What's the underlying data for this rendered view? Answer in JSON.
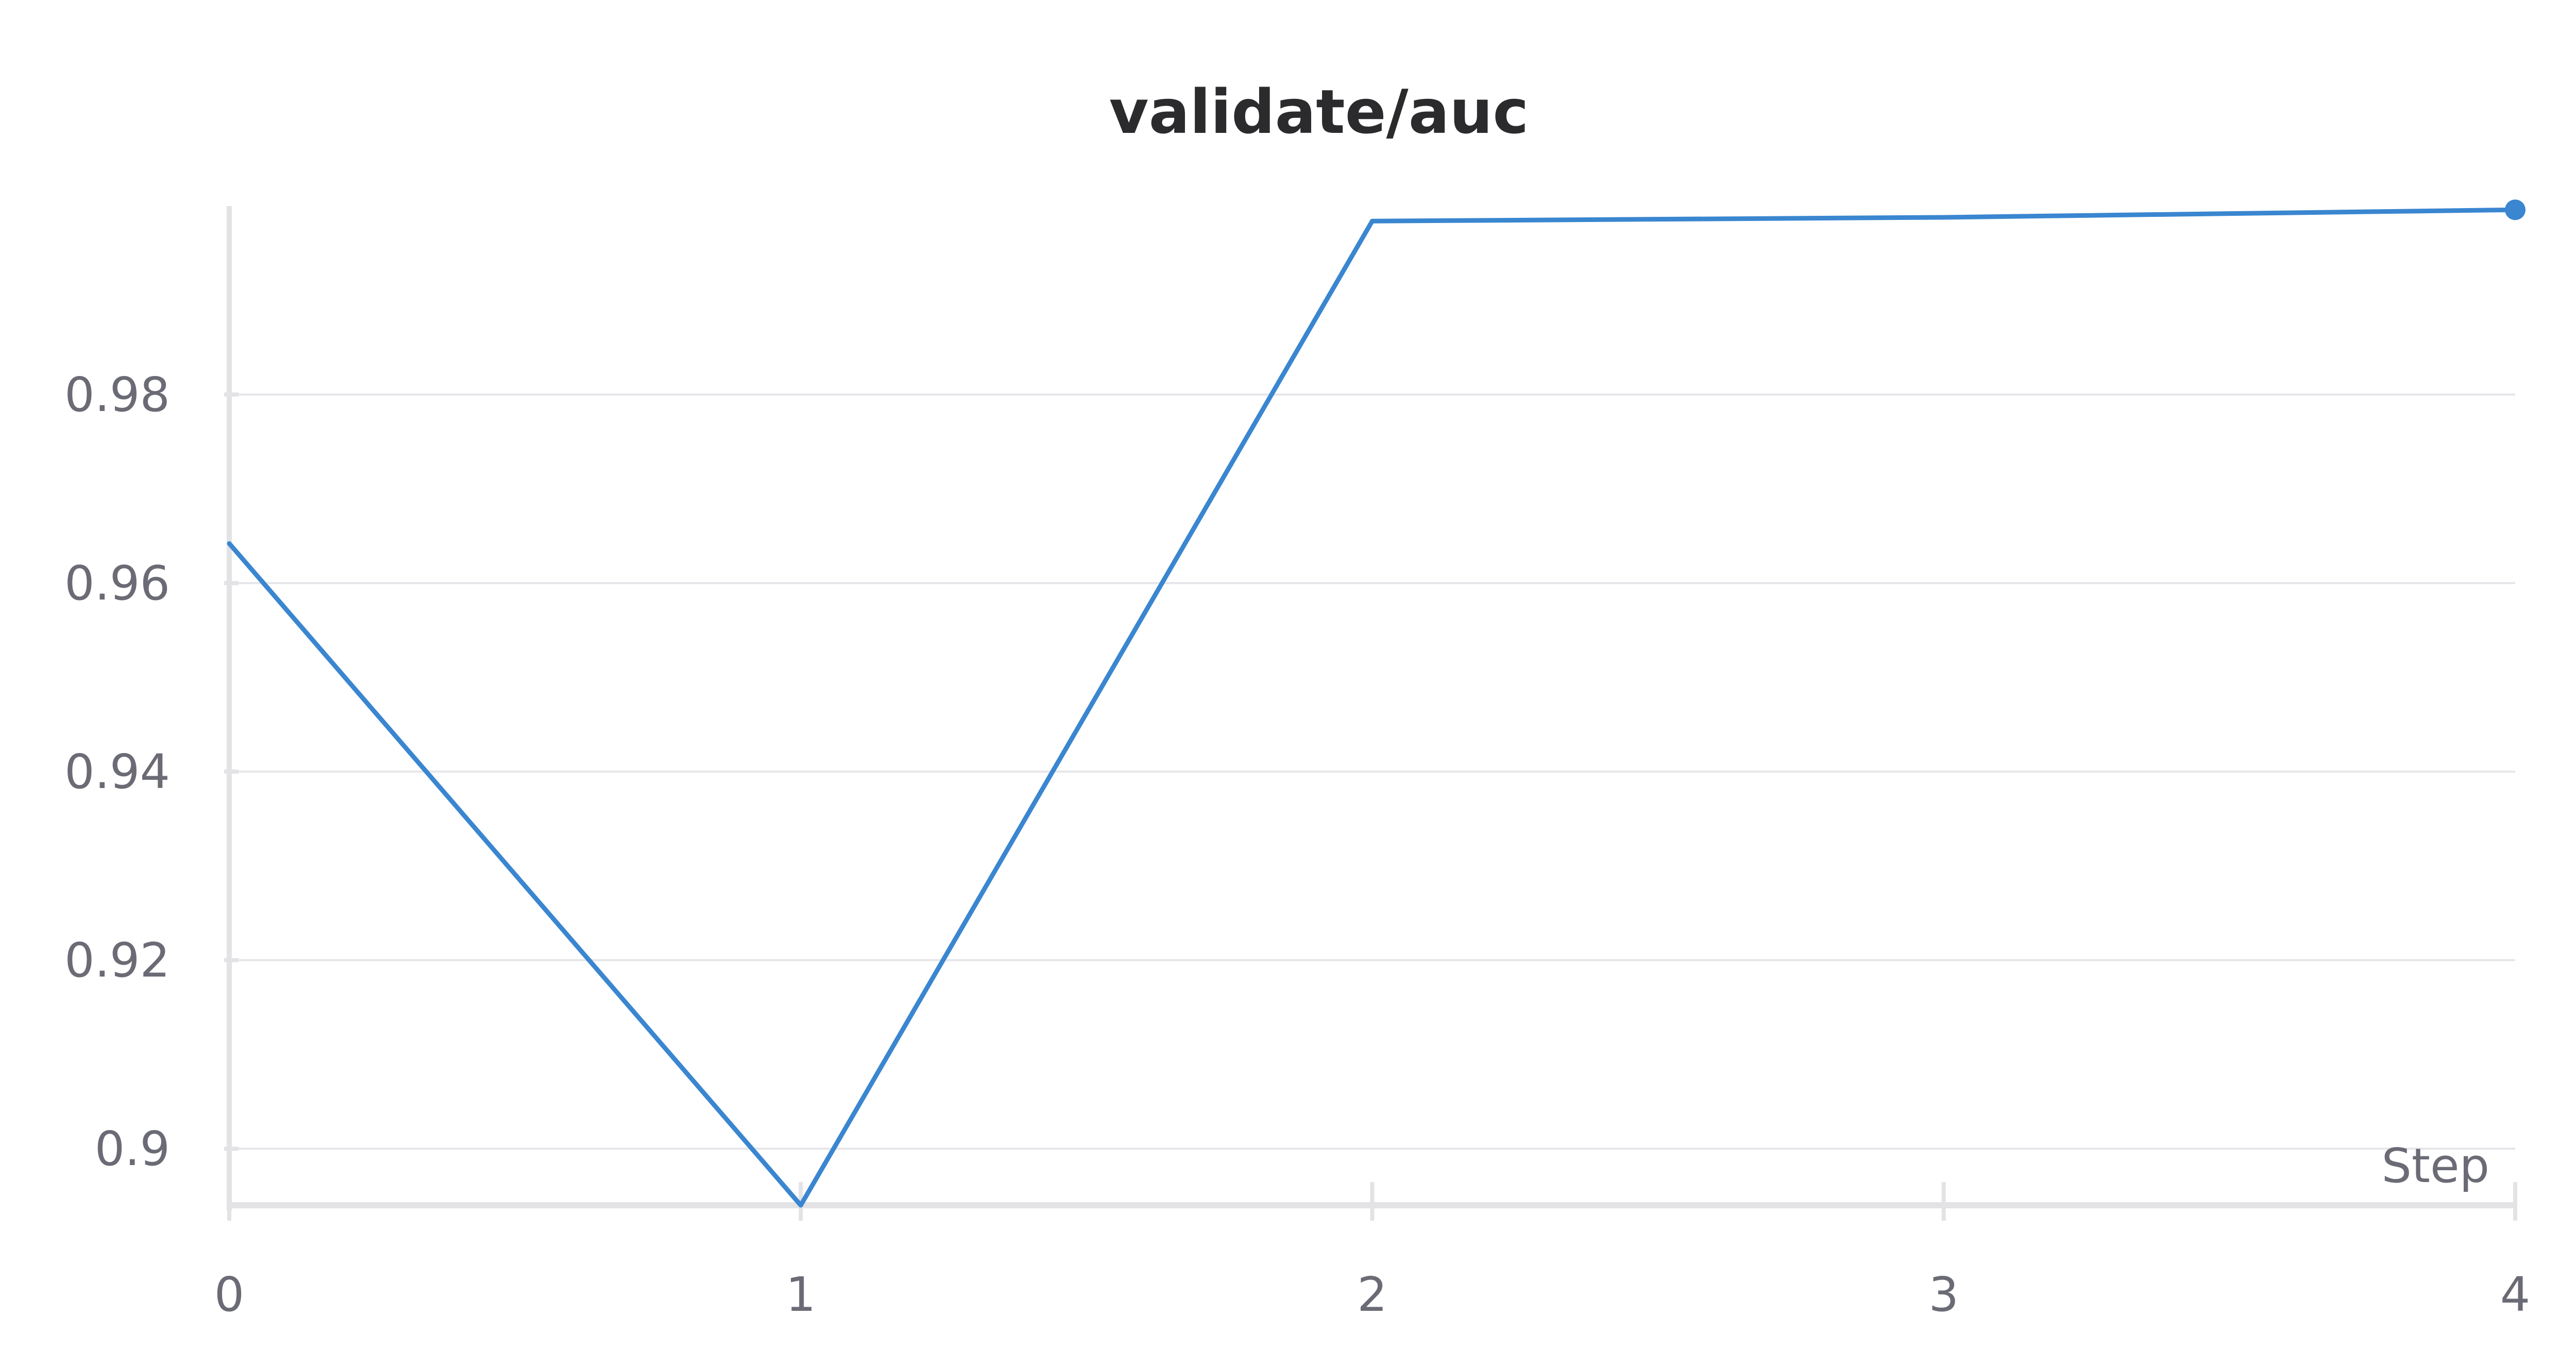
{
  "chart_data": {
    "type": "line",
    "title": "validate/auc",
    "xlabel": "Step",
    "ylabel": "",
    "x": [
      0,
      1,
      2,
      3,
      4
    ],
    "series": [
      {
        "values": [
          0.9642,
          0.894,
          0.9984,
          0.9988,
          0.9996
        ],
        "color": "#3a86d0"
      }
    ],
    "xlim": [
      0,
      4
    ],
    "ylim": [
      0.894,
      1.0
    ],
    "x_ticks": [
      0,
      1,
      2,
      3,
      4
    ],
    "x_tick_labels": [
      "0",
      "1",
      "2",
      "3",
      "4"
    ],
    "y_ticks": [
      0.9,
      0.92,
      0.94,
      0.96,
      0.98
    ],
    "y_tick_labels": [
      "0.9",
      "0.92",
      "0.94",
      "0.96",
      "0.98"
    ],
    "grid": "horizontal",
    "legend": "none"
  },
  "colors": {
    "line": "#3a86d0",
    "grid": "#e6e6ea",
    "axis": "#e3e3e6",
    "text": "#6b6b76",
    "title": "#2b2b2e"
  }
}
